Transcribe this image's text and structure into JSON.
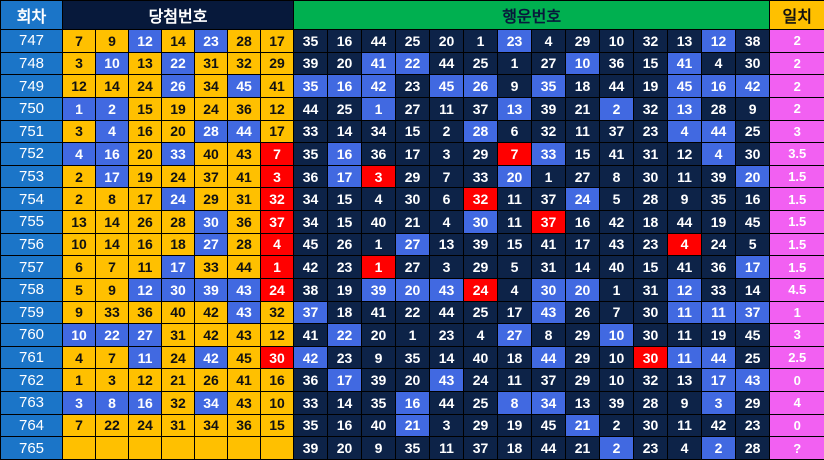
{
  "header": {
    "round": "회차",
    "winning": "당첨번호",
    "lucky": "행운번호",
    "match": "일치"
  },
  "palette": {
    "round_column": "#1B75C8",
    "winning_header": "#07193B",
    "lucky_header_green": "#00B050",
    "match_header_orange": "#FFC000",
    "cell_orange": "#FFC000",
    "cell_highlight_blue": "#4169E1",
    "cell_dark_navy": "#0D2348",
    "cell_red": "#FF0000",
    "match_pink": "#F260F2"
  },
  "color_legend": {
    "o": "orange base winning cell",
    "b": "blue highlight (matched/duplicate number)",
    "d": "dark navy base lucky cell",
    "r": "red highlight (bonus-number match)"
  },
  "rows": [
    {
      "round": "747",
      "win": [
        "7",
        "9",
        "12",
        "14",
        "23",
        "28",
        "17"
      ],
      "win_c": "ooboboo",
      "lucky": [
        "35",
        "16",
        "44",
        "25",
        "20",
        "1",
        "23",
        "4",
        "29",
        "10",
        "32",
        "13",
        "12",
        "38"
      ],
      "lucky_c": "ddddddbdddddbd",
      "match": "2"
    },
    {
      "round": "748",
      "win": [
        "3",
        "10",
        "13",
        "22",
        "31",
        "32",
        "29"
      ],
      "win_c": "obobooo",
      "lucky": [
        "39",
        "20",
        "41",
        "22",
        "44",
        "25",
        "1",
        "27",
        "10",
        "36",
        "15",
        "41",
        "4",
        "30"
      ],
      "lucky_c": "ddbbddddbddbdd",
      "match": "2"
    },
    {
      "round": "749",
      "win": [
        "12",
        "14",
        "24",
        "26",
        "34",
        "45",
        "41"
      ],
      "win_c": "ooobobo",
      "lucky": [
        "35",
        "16",
        "42",
        "23",
        "45",
        "26",
        "9",
        "35",
        "18",
        "44",
        "19",
        "45",
        "16",
        "42"
      ],
      "lucky_c": "bbbdbbdbdddbbb",
      "match": "2"
    },
    {
      "round": "750",
      "win": [
        "1",
        "2",
        "15",
        "19",
        "24",
        "36",
        "12"
      ],
      "win_c": "bbooooo",
      "lucky": [
        "44",
        "25",
        "1",
        "27",
        "11",
        "37",
        "13",
        "39",
        "21",
        "2",
        "32",
        "13",
        "28",
        "9"
      ],
      "lucky_c": "ddbdddbddbdbdd",
      "match": "2"
    },
    {
      "round": "751",
      "win": [
        "3",
        "4",
        "16",
        "20",
        "28",
        "44",
        "17"
      ],
      "win_c": "oboobbo",
      "lucky": [
        "33",
        "14",
        "34",
        "15",
        "2",
        "28",
        "6",
        "32",
        "11",
        "37",
        "23",
        "4",
        "44",
        "25"
      ],
      "lucky_c": "dddddbdddddbbd",
      "match": "3"
    },
    {
      "round": "752",
      "win": [
        "4",
        "16",
        "20",
        "33",
        "40",
        "43",
        "7"
      ],
      "win_c": "bboboor",
      "lucky": [
        "35",
        "16",
        "36",
        "17",
        "3",
        "29",
        "7",
        "33",
        "15",
        "41",
        "31",
        "12",
        "4",
        "30"
      ],
      "lucky_c": "dbddddrbddddbd",
      "match": "3.5"
    },
    {
      "round": "753",
      "win": [
        "2",
        "17",
        "19",
        "24",
        "37",
        "41",
        "3"
      ],
      "win_c": "oboooor",
      "lucky": [
        "36",
        "17",
        "3",
        "29",
        "7",
        "33",
        "20",
        "1",
        "27",
        "8",
        "30",
        "11",
        "39",
        "20"
      ],
      "lucky_c": "dbrdddbddddddb",
      "match": "1.5"
    },
    {
      "round": "754",
      "win": [
        "2",
        "8",
        "17",
        "24",
        "29",
        "31",
        "32"
      ],
      "win_c": "oooboor",
      "lucky": [
        "34",
        "15",
        "4",
        "30",
        "6",
        "32",
        "11",
        "37",
        "24",
        "5",
        "28",
        "9",
        "35",
        "16"
      ],
      "lucky_c": "dddddrddbddddd",
      "match": "1.5"
    },
    {
      "round": "755",
      "win": [
        "13",
        "14",
        "26",
        "28",
        "30",
        "36",
        "37"
      ],
      "win_c": "oooobor",
      "lucky": [
        "34",
        "15",
        "40",
        "21",
        "4",
        "30",
        "11",
        "37",
        "16",
        "42",
        "18",
        "44",
        "19",
        "45"
      ],
      "lucky_c": "dddddbdrdddddd",
      "match": "1.5"
    },
    {
      "round": "756",
      "win": [
        "10",
        "14",
        "16",
        "18",
        "27",
        "28",
        "4"
      ],
      "win_c": "oooobor",
      "lucky": [
        "45",
        "26",
        "1",
        "27",
        "13",
        "39",
        "15",
        "41",
        "17",
        "43",
        "23",
        "4",
        "24",
        "5"
      ],
      "lucky_c": "dddbdddddddrdd",
      "match": "1.5"
    },
    {
      "round": "757",
      "win": [
        "6",
        "7",
        "11",
        "17",
        "33",
        "44",
        "1"
      ],
      "win_c": "oooboor",
      "lucky": [
        "42",
        "23",
        "1",
        "27",
        "3",
        "29",
        "5",
        "31",
        "14",
        "40",
        "15",
        "41",
        "36",
        "17"
      ],
      "lucky_c": "ddrddddddddddb",
      "match": "1.5"
    },
    {
      "round": "758",
      "win": [
        "5",
        "9",
        "12",
        "30",
        "39",
        "43",
        "24"
      ],
      "win_c": "oobbbbr",
      "lucky": [
        "38",
        "19",
        "39",
        "20",
        "43",
        "24",
        "4",
        "30",
        "20",
        "1",
        "31",
        "12",
        "33",
        "14"
      ],
      "lucky_c": "ddbbbrdbbddbdd",
      "match": "4.5"
    },
    {
      "round": "759",
      "win": [
        "9",
        "33",
        "36",
        "40",
        "42",
        "43",
        "32"
      ],
      "win_c": "ooooobo",
      "lucky": [
        "37",
        "18",
        "41",
        "22",
        "44",
        "25",
        "17",
        "43",
        "26",
        "7",
        "30",
        "11",
        "11",
        "37"
      ],
      "lucky_c": "bddddddbdddbbb",
      "match": "1"
    },
    {
      "round": "760",
      "win": [
        "10",
        "22",
        "27",
        "31",
        "42",
        "43",
        "12"
      ],
      "win_c": "bbboooo",
      "lucky": [
        "41",
        "22",
        "20",
        "1",
        "23",
        "4",
        "27",
        "8",
        "29",
        "10",
        "30",
        "11",
        "19",
        "45"
      ],
      "lucky_c": "dbddddbddbdddd",
      "match": "3"
    },
    {
      "round": "761",
      "win": [
        "4",
        "7",
        "11",
        "24",
        "42",
        "45",
        "30"
      ],
      "win_c": "oobobor",
      "lucky": [
        "42",
        "23",
        "9",
        "35",
        "14",
        "40",
        "18",
        "44",
        "29",
        "10",
        "30",
        "11",
        "44",
        "25"
      ],
      "lucky_c": "bddddddbddrbbd",
      "match": "2.5"
    },
    {
      "round": "762",
      "win": [
        "1",
        "3",
        "12",
        "21",
        "26",
        "41",
        "16"
      ],
      "win_c": "ooooooo",
      "lucky": [
        "36",
        "17",
        "39",
        "20",
        "43",
        "24",
        "11",
        "37",
        "29",
        "10",
        "32",
        "13",
        "17",
        "43"
      ],
      "lucky_c": "dbddbdddddddbb",
      "match": "0"
    },
    {
      "round": "763",
      "win": [
        "3",
        "8",
        "16",
        "32",
        "34",
        "43",
        "10"
      ],
      "win_c": "bbboboo",
      "lucky": [
        "33",
        "14",
        "35",
        "16",
        "44",
        "25",
        "8",
        "34",
        "13",
        "39",
        "28",
        "9",
        "3",
        "29"
      ],
      "lucky_c": "dddbddbbddddbd",
      "match": "4"
    },
    {
      "round": "764",
      "win": [
        "7",
        "22",
        "24",
        "31",
        "34",
        "36",
        "15"
      ],
      "win_c": "ooooooo",
      "lucky": [
        "35",
        "16",
        "40",
        "21",
        "3",
        "29",
        "19",
        "45",
        "21",
        "2",
        "30",
        "11",
        "42",
        "23"
      ],
      "lucky_c": "dddbddddbddddd",
      "match": "0"
    },
    {
      "round": "765",
      "win": [
        "",
        "",
        "",
        "",
        "",
        "",
        ""
      ],
      "win_c": "ooooooo",
      "lucky": [
        "39",
        "20",
        "9",
        "35",
        "11",
        "37",
        "18",
        "44",
        "21",
        "2",
        "23",
        "4",
        "2",
        "28"
      ],
      "lucky_c": "dddddddddbddbd",
      "match": "?"
    }
  ]
}
